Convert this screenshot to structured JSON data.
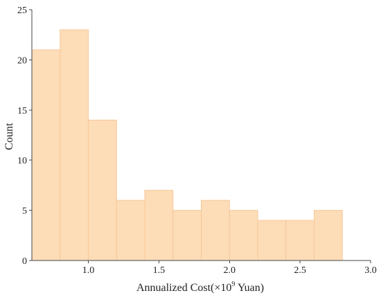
{
  "chart_data": {
    "type": "bar",
    "subtype": "histogram",
    "bin_edges": [
      0.6,
      0.8,
      1.0,
      1.2,
      1.4,
      1.6,
      1.8,
      2.0,
      2.2,
      2.4,
      2.6,
      2.8
    ],
    "values": [
      21,
      23,
      14,
      6,
      7,
      5,
      6,
      5,
      4,
      4,
      5
    ],
    "title": "",
    "xlabel": "Annualized Cost(×10",
    "xlabel_superscript": "9",
    "xlabel_suffix": " Yuan)",
    "ylabel": "Count",
    "xlim": [
      0.6,
      3.0
    ],
    "ylim": [
      0,
      25
    ],
    "xticks": [
      1.0,
      1.5,
      2.0,
      2.5,
      3.0
    ],
    "xtick_labels": [
      "1.0",
      "1.5",
      "2.0",
      "2.5",
      "3.0"
    ],
    "yticks": [
      0,
      5,
      10,
      15,
      20,
      25
    ],
    "ytick_labels": [
      "0",
      "5",
      "10",
      "15",
      "20",
      "25"
    ],
    "grid": false,
    "legend": "none",
    "colors": {
      "bar_fill": "#fddcb8",
      "bar_stroke": "#f7c898",
      "axis": "#444444"
    }
  }
}
